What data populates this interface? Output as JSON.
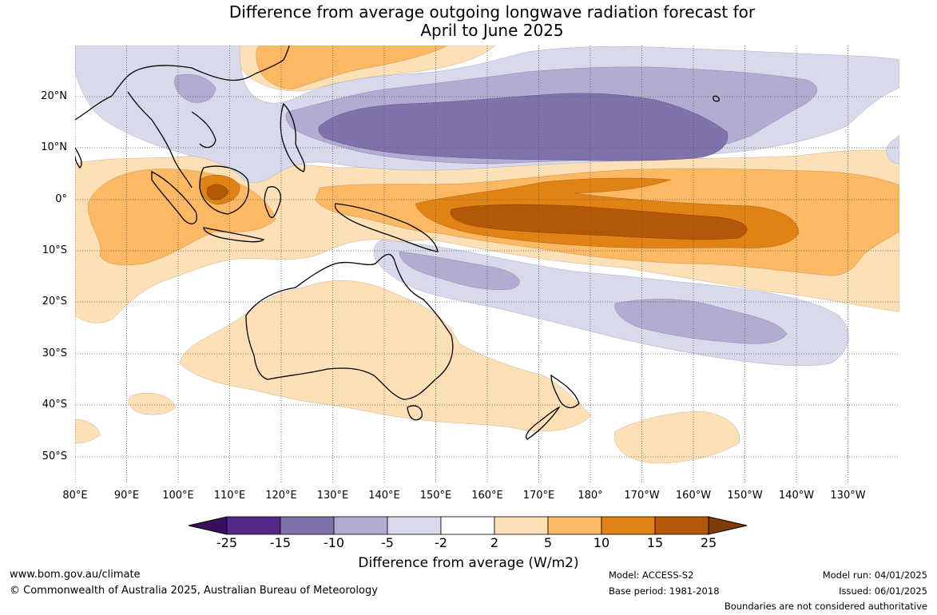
{
  "title": {
    "line1": "Difference from average outgoing longwave radiation forecast for",
    "line2": "April to June 2025"
  },
  "map": {
    "lat_labels": [
      "20°N",
      "10°N",
      "0°",
      "10°S",
      "20°S",
      "30°S",
      "40°S",
      "50°S"
    ],
    "lon_labels": [
      "80°E",
      "90°E",
      "100°E",
      "110°E",
      "120°E",
      "130°E",
      "140°E",
      "150°E",
      "160°E",
      "170°E",
      "180°",
      "170°W",
      "160°W",
      "150°W",
      "140°W",
      "130°W"
    ]
  },
  "colorbar": {
    "ticks": [
      "-25",
      "-15",
      "-10",
      "-5",
      "-2",
      "2",
      "5",
      "10",
      "15",
      "25"
    ],
    "colors": {
      "below": "#3a0f5c",
      "n25": "#542788",
      "n15": "#8073ac",
      "n10": "#b2abd2",
      "n5": "#d8daeb",
      "zero": "#ffffff",
      "p2": "#fee0b6",
      "p5": "#fdb863",
      "p10": "#e08214",
      "p15": "#b35806",
      "above": "#7f3b08"
    },
    "label": "Difference from average (W/m2)"
  },
  "footer": {
    "website": "www.bom.gov.au/climate",
    "copyright": "© Commonwealth of Australia 2025, Australian Bureau of Meteorology",
    "model": "Model: ACCESS-S2",
    "base_period": "Base period: 1981-2018",
    "model_run": "Model run: 04/01/2025",
    "issued": "Issued: 06/01/2025",
    "disclaimer": "Boundaries are not considered authoritative"
  }
}
